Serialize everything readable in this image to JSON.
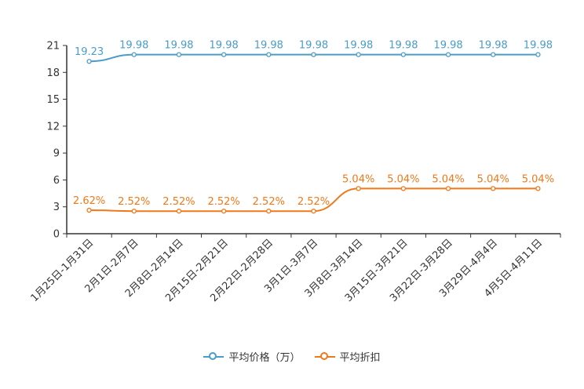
{
  "chart_data": {
    "type": "line",
    "categories": [
      "1月25日-1月31日",
      "2月1日-2月7日",
      "2月8日-2月14日",
      "2月15日-2月21日",
      "2月22日-2月28日",
      "3月1日-3月7日",
      "3月8日-3月14日",
      "3月15日-3月21日",
      "3月22日-3月28日",
      "3月29日-4月4日",
      "4月5日-4月11日"
    ],
    "series": [
      {
        "name": "平均价格（万）",
        "color": "#4a9cc9",
        "values": [
          19.23,
          19.98,
          19.98,
          19.98,
          19.98,
          19.98,
          19.98,
          19.98,
          19.98,
          19.98,
          19.98
        ],
        "labels": [
          "19.23",
          "19.98",
          "19.98",
          "19.98",
          "19.98",
          "19.98",
          "19.98",
          "19.98",
          "19.98",
          "19.98",
          "19.98"
        ]
      },
      {
        "name": "平均折扣",
        "color": "#f07818",
        "values": [
          2.62,
          2.52,
          2.52,
          2.52,
          2.52,
          2.52,
          5.04,
          5.04,
          5.04,
          5.04,
          5.04
        ],
        "labels": [
          "2.62%",
          "2.52%",
          "2.52%",
          "2.52%",
          "2.52%",
          "2.52%",
          "5.04%",
          "5.04%",
          "5.04%",
          "5.04%",
          "5.04%"
        ]
      }
    ],
    "yticks": [
      "0",
      "3",
      "6",
      "9",
      "12",
      "15",
      "18",
      "21"
    ],
    "ylim": [
      0,
      21
    ],
    "title": "",
    "xlabel": "",
    "ylabel": "",
    "legend_position": "bottom-center"
  },
  "legend": {
    "price_label": "平均价格（万）",
    "discount_label": "平均折扣"
  }
}
